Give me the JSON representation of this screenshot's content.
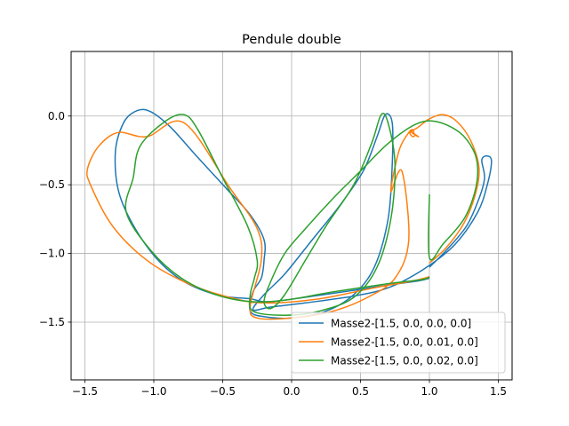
{
  "chart_data": {
    "type": "line",
    "title": "Pendule double",
    "xlabel": "",
    "ylabel": "",
    "xlim": [
      -1.6,
      1.6
    ],
    "ylim": [
      -1.92,
      0.47
    ],
    "xticks": [
      -1.5,
      -1.0,
      -0.5,
      0.0,
      0.5,
      1.0,
      1.5
    ],
    "xtick_labels": [
      "−1.5",
      "−1.0",
      "−0.5",
      "0.0",
      "0.5",
      "1.0",
      "1.5"
    ],
    "yticks": [
      0.0,
      -0.5,
      -1.0,
      -1.5
    ],
    "ytick_labels": [
      "0.0",
      "−0.5",
      "−1.0",
      "−1.5"
    ],
    "grid": true,
    "legend_position": "lower-right",
    "series": [
      {
        "name": "Masse2-[1.5, 0.0, 0.0, 0.0]",
        "color": "#1f77b4",
        "points": [
          [
            1.0,
            -1.1
          ],
          [
            1.12,
            -0.98
          ],
          [
            1.27,
            -0.8
          ],
          [
            1.36,
            -0.6
          ],
          [
            1.4,
            -0.45
          ],
          [
            1.38,
            -0.32
          ],
          [
            1.42,
            -0.29
          ],
          [
            1.45,
            -0.33
          ],
          [
            1.42,
            -0.5
          ],
          [
            1.35,
            -0.7
          ],
          [
            1.18,
            -0.94
          ],
          [
            0.95,
            -1.12
          ],
          [
            0.7,
            -1.25
          ],
          [
            0.45,
            -1.31
          ],
          [
            0.1,
            -1.36
          ],
          [
            -0.15,
            -1.39
          ],
          [
            -0.28,
            -1.41
          ],
          [
            -0.2,
            -1.3
          ],
          [
            -0.05,
            -1.15
          ],
          [
            0.15,
            -0.9
          ],
          [
            0.35,
            -0.65
          ],
          [
            0.52,
            -0.4
          ],
          [
            0.62,
            -0.15
          ],
          [
            0.68,
            0.01
          ],
          [
            0.73,
            -0.05
          ],
          [
            0.73,
            -0.35
          ],
          [
            0.7,
            -0.75
          ],
          [
            0.6,
            -1.1
          ],
          [
            0.45,
            -1.3
          ],
          [
            0.25,
            -1.42
          ],
          [
            0.0,
            -1.47
          ],
          [
            -0.2,
            -1.46
          ],
          [
            -0.3,
            -1.42
          ],
          [
            -0.28,
            -1.28
          ],
          [
            -0.22,
            -1.18
          ],
          [
            -0.2,
            -1.05
          ],
          [
            -0.2,
            -0.9
          ],
          [
            -0.3,
            -0.72
          ],
          [
            -0.48,
            -0.52
          ],
          [
            -0.7,
            -0.28
          ],
          [
            -0.88,
            -0.08
          ],
          [
            -1.02,
            0.03
          ],
          [
            -1.12,
            0.04
          ],
          [
            -1.22,
            -0.05
          ],
          [
            -1.28,
            -0.28
          ],
          [
            -1.24,
            -0.6
          ],
          [
            -1.05,
            -0.95
          ],
          [
            -0.82,
            -1.18
          ],
          [
            -0.55,
            -1.3
          ],
          [
            -0.3,
            -1.33
          ],
          [
            -0.15,
            -1.35
          ],
          [
            0.3,
            -1.29
          ],
          [
            0.7,
            -1.23
          ],
          [
            0.92,
            -1.2
          ],
          [
            1.0,
            -1.18
          ]
        ]
      },
      {
        "name": "Masse2-[1.5, 0.0, 0.01, 0.0]",
        "color": "#ff7f0e",
        "points": [
          [
            1.0,
            -1.07
          ],
          [
            1.12,
            -0.96
          ],
          [
            1.25,
            -0.78
          ],
          [
            1.33,
            -0.58
          ],
          [
            1.36,
            -0.38
          ],
          [
            1.3,
            -0.18
          ],
          [
            1.2,
            -0.04
          ],
          [
            1.1,
            0.01
          ],
          [
            1.0,
            -0.02
          ],
          [
            0.92,
            -0.08
          ],
          [
            0.86,
            -0.12
          ],
          [
            0.88,
            -0.15
          ],
          [
            0.9,
            -0.14
          ],
          [
            0.92,
            -0.15
          ],
          [
            0.9,
            -0.14
          ],
          [
            0.86,
            -0.11
          ],
          [
            0.92,
            -0.15
          ],
          [
            0.89,
            -0.13
          ],
          [
            0.88,
            -0.1
          ],
          [
            0.85,
            -0.12
          ],
          [
            0.78,
            -0.25
          ],
          [
            0.72,
            -0.55
          ],
          [
            0.8,
            -0.4
          ],
          [
            0.85,
            -0.9
          ],
          [
            0.75,
            -1.18
          ],
          [
            0.55,
            -1.32
          ],
          [
            0.3,
            -1.42
          ],
          [
            0.0,
            -1.47
          ],
          [
            -0.25,
            -1.47
          ],
          [
            -0.3,
            -1.38
          ],
          [
            -0.22,
            -1.05
          ],
          [
            -0.25,
            -0.82
          ],
          [
            -0.45,
            -0.52
          ],
          [
            -0.78,
            -0.05
          ],
          [
            -1.05,
            -0.15
          ],
          [
            -1.26,
            -0.12
          ],
          [
            -1.4,
            -0.22
          ],
          [
            -1.48,
            -0.38
          ],
          [
            -1.46,
            -0.5
          ],
          [
            -1.3,
            -0.8
          ],
          [
            -1.05,
            -1.05
          ],
          [
            -0.75,
            -1.22
          ],
          [
            -0.45,
            -1.32
          ],
          [
            -0.2,
            -1.36
          ],
          [
            0.2,
            -1.33
          ],
          [
            0.6,
            -1.25
          ],
          [
            0.88,
            -1.2
          ],
          [
            1.0,
            -1.17
          ]
        ]
      },
      {
        "name": "Masse2-[1.5, 0.0, 0.02, 0.0]",
        "color": "#2ca02c",
        "points": [
          [
            1.0,
            -0.57
          ],
          [
            1.0,
            -1.03
          ],
          [
            1.1,
            -0.93
          ],
          [
            1.25,
            -0.75
          ],
          [
            1.33,
            -0.55
          ],
          [
            1.35,
            -0.38
          ],
          [
            1.32,
            -0.25
          ],
          [
            1.22,
            -0.12
          ],
          [
            1.05,
            -0.04
          ],
          [
            0.9,
            -0.06
          ],
          [
            0.7,
            -0.2
          ],
          [
            0.5,
            -0.4
          ],
          [
            0.3,
            -0.6
          ],
          [
            0.1,
            -0.82
          ],
          [
            -0.05,
            -1.0
          ],
          [
            -0.15,
            -1.2
          ],
          [
            -0.2,
            -1.35
          ],
          [
            -0.15,
            -1.4
          ],
          [
            -0.05,
            -1.3
          ],
          [
            0.1,
            -1.05
          ],
          [
            0.25,
            -0.8
          ],
          [
            0.45,
            -0.5
          ],
          [
            0.58,
            -0.2
          ],
          [
            0.65,
            0.01
          ],
          [
            0.7,
            -0.05
          ],
          [
            0.75,
            -0.35
          ],
          [
            0.72,
            -0.75
          ],
          [
            0.62,
            -1.1
          ],
          [
            0.45,
            -1.32
          ],
          [
            0.2,
            -1.42
          ],
          [
            -0.05,
            -1.45
          ],
          [
            -0.28,
            -1.42
          ],
          [
            -0.3,
            -1.3
          ],
          [
            -0.27,
            -1.18
          ],
          [
            -0.25,
            -1.05
          ],
          [
            -0.32,
            -0.8
          ],
          [
            -0.5,
            -0.45
          ],
          [
            -0.68,
            -0.1
          ],
          [
            -0.78,
            0.01
          ],
          [
            -0.92,
            -0.04
          ],
          [
            -1.1,
            -0.22
          ],
          [
            -1.15,
            -0.45
          ],
          [
            -1.2,
            -0.7
          ],
          [
            -1.02,
            -0.98
          ],
          [
            -0.8,
            -1.18
          ],
          [
            -0.55,
            -1.3
          ],
          [
            -0.3,
            -1.35
          ],
          [
            -0.05,
            -1.34
          ],
          [
            0.3,
            -1.28
          ],
          [
            0.7,
            -1.22
          ],
          [
            0.95,
            -1.19
          ],
          [
            1.0,
            -1.17
          ]
        ]
      }
    ]
  }
}
